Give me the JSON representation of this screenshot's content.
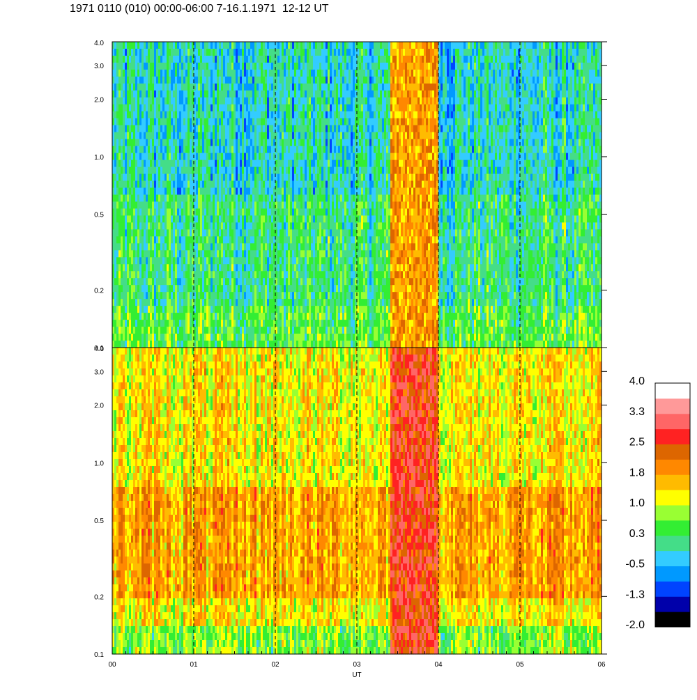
{
  "title": "1971 0110 (010) 00:00-06:00 7-16.1.1971  12-12 UT",
  "chart_data": {
    "type": "heatmap",
    "xlabel": "UT",
    "x_ticks": [
      "00",
      "01",
      "02",
      "03",
      "04",
      "05",
      "06"
    ],
    "x_range": [
      0,
      6
    ],
    "hour_markers": [
      1,
      2,
      3,
      4,
      5
    ],
    "panels": [
      {
        "y_scale": "log",
        "y_range": [
          0.1,
          4.0
        ],
        "y_ticks": [
          "4.0",
          "3.0",
          "2.0",
          "1.0",
          "0.5",
          "0.2",
          "0.1"
        ],
        "y_tick_values": [
          4.0,
          3.0,
          2.0,
          1.0,
          0.5,
          0.2,
          0.1
        ],
        "baseline_level": 0.1,
        "event": {
          "start": 3.42,
          "end": 4.0,
          "level": 1.8
        }
      },
      {
        "y_scale": "log",
        "y_range": [
          0.1,
          4.0
        ],
        "y_ticks": [
          "4.0",
          "3.0",
          "2.0",
          "1.0",
          "0.5",
          "0.2",
          "0.1"
        ],
        "y_tick_values": [
          4.0,
          3.0,
          2.0,
          1.0,
          0.5,
          0.2,
          0.1
        ],
        "baseline_level": 1.4,
        "event": {
          "start": 3.42,
          "end": 4.0,
          "level": 2.6
        }
      }
    ],
    "colorbar": {
      "range": [
        -2.0,
        4.0
      ],
      "tick_labels": [
        "4.0",
        "3.3",
        "2.5",
        "1.8",
        "1.0",
        "0.3",
        "-0.5",
        "-1.3",
        "-2.0"
      ],
      "tick_values": [
        4.0,
        3.25,
        2.5,
        1.75,
        1.0,
        0.25,
        -0.5,
        -1.25,
        -2.0
      ],
      "colors": [
        "#000000",
        "#0000aa",
        "#0044ff",
        "#0099ff",
        "#33ccff",
        "#44dd88",
        "#33ee33",
        "#99ff33",
        "#ffff00",
        "#ffbb00",
        "#ff8800",
        "#dd6600",
        "#ff2222",
        "#ff6666",
        "#ff9999",
        "#ffffff"
      ]
    }
  }
}
